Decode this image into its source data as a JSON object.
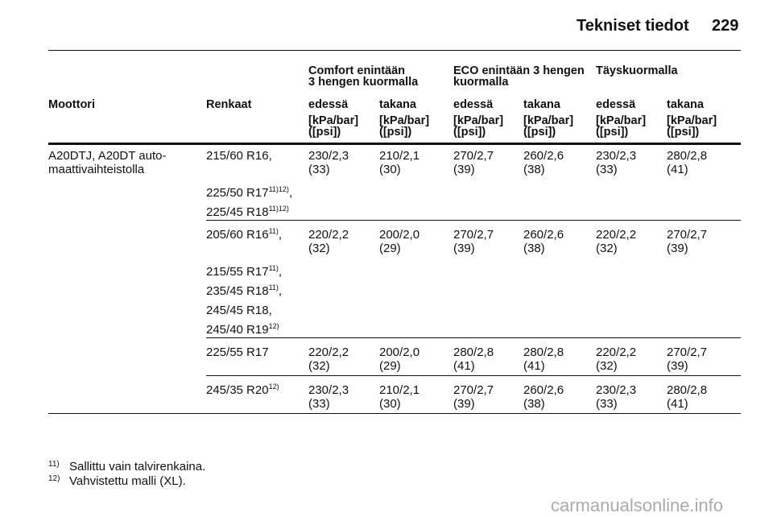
{
  "header": {
    "title": "Tekniset tiedot",
    "page": "229"
  },
  "table": {
    "group_headers": [
      {
        "lines": [
          "Comfort enintään",
          "3 hengen kuormalla"
        ]
      },
      {
        "lines": [
          "ECO enintään 3 hengen",
          "kuormalla"
        ]
      },
      {
        "lines": [
          "Täyskuormalla"
        ]
      }
    ],
    "columns": [
      "Moottori",
      "Renkaat",
      "edessä",
      "takana",
      "edessä",
      "takana",
      "edessä",
      "takana"
    ],
    "units": [
      [
        "[kPa/bar]",
        "([psi])"
      ],
      [
        "[kPa/bar]",
        "([psi])"
      ],
      [
        "[kPa/bar]",
        "([psi])"
      ],
      [
        "[kPa/bar]",
        "([psi])"
      ],
      [
        "[kPa/bar]",
        "([psi])"
      ],
      [
        "[kPa/bar]",
        "([psi])"
      ]
    ],
    "engine": [
      "A20DTJ, A20DT auto-",
      "maattivaihteistolla"
    ],
    "groups": [
      {
        "tires": [
          {
            "size": "215/60 R16,"
          },
          {
            "size": "225/50 R17",
            "note": "11)12)",
            "after": ","
          },
          {
            "size": "225/45 R18",
            "note": "11)12)"
          }
        ],
        "pressures": [
          [
            "230/2,3",
            "(33)"
          ],
          [
            "210/2,1",
            "(30)"
          ],
          [
            "270/2,7",
            "(39)"
          ],
          [
            "260/2,6",
            "(38)"
          ],
          [
            "230/2,3",
            "(33)"
          ],
          [
            "280/2,8",
            "(41)"
          ]
        ]
      },
      {
        "tires": [
          {
            "size": "205/60 R16",
            "note": "11)",
            "after": ","
          },
          {
            "size": "215/55 R17",
            "note": "11)",
            "after": ","
          },
          {
            "size": "235/45 R18",
            "note": "11)",
            "after": ","
          },
          {
            "size": "245/45 R18,"
          },
          {
            "size": "245/40 R19",
            "note": "12)"
          }
        ],
        "pressures": [
          [
            "220/2,2",
            "(32)"
          ],
          [
            "200/2,0",
            "(29)"
          ],
          [
            "270/2,7",
            "(39)"
          ],
          [
            "260/2,6",
            "(38)"
          ],
          [
            "220/2,2",
            "(32)"
          ],
          [
            "270/2,7",
            "(39)"
          ]
        ]
      },
      {
        "tires": [
          {
            "size": "225/55 R17"
          }
        ],
        "pressures": [
          [
            "220/2,2",
            "(32)"
          ],
          [
            "200/2,0",
            "(29)"
          ],
          [
            "280/2,8",
            "(41)"
          ],
          [
            "280/2,8",
            "(41)"
          ],
          [
            "220/2,2",
            "(32)"
          ],
          [
            "270/2,7",
            "(39)"
          ]
        ]
      },
      {
        "tires": [
          {
            "size": "245/35 R20",
            "note": "12)"
          }
        ],
        "pressures": [
          [
            "230/2,3",
            "(33)"
          ],
          [
            "210/2,1",
            "(30)"
          ],
          [
            "270/2,7",
            "(39)"
          ],
          [
            "260/2,6",
            "(38)"
          ],
          [
            "230/2,3",
            "(33)"
          ],
          [
            "280/2,8",
            "(41)"
          ]
        ]
      }
    ]
  },
  "footnotes": [
    {
      "mark": "11)",
      "text": "Sallittu vain talvirenkaina."
    },
    {
      "mark": "12)",
      "text": "Vahvistettu malli (XL)."
    }
  ],
  "watermark": "carmanualsonline.info"
}
